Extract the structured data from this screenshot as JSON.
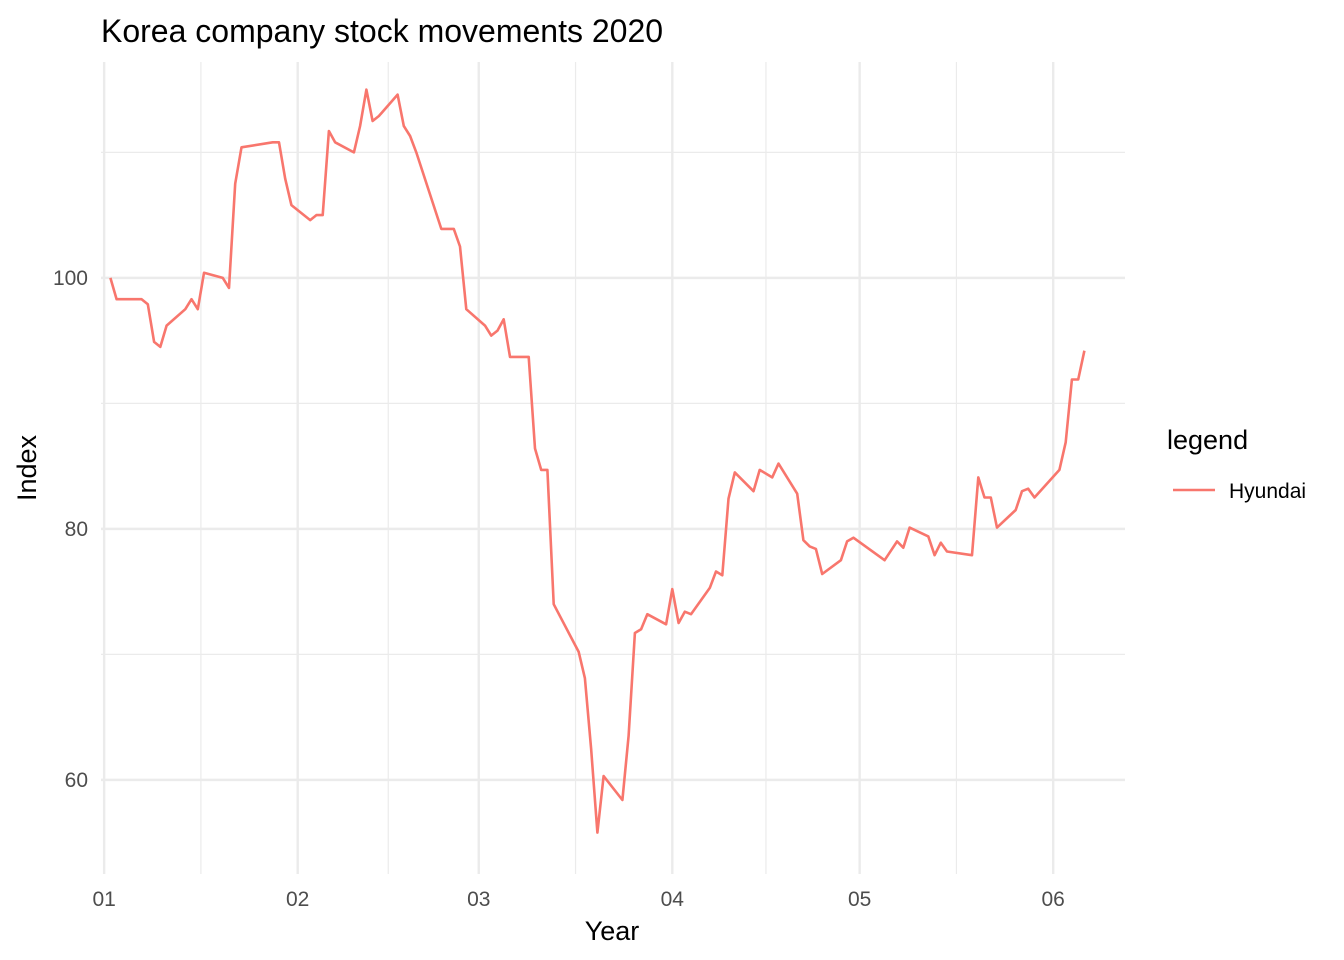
{
  "chart_data": {
    "type": "line",
    "title": "Korea company stock movements 2020",
    "xlabel": "Year",
    "ylabel": "Index",
    "x_tick_labels": [
      "01",
      "02",
      "03",
      "04",
      "05",
      "06"
    ],
    "y_ticks": [
      60,
      80,
      100
    ],
    "ylim": [
      52.5,
      117.2
    ],
    "xlim": [
      0.5,
      164.5
    ],
    "x_tick_days": [
      1,
      32,
      61,
      92,
      122,
      153
    ],
    "grid": true,
    "legend": {
      "title": "legend",
      "position": "right"
    },
    "series": [
      {
        "name": "Hyundai",
        "color": "#F8766D",
        "points": [
          [
            2,
            100.0
          ],
          [
            3,
            98.3
          ],
          [
            6,
            98.3
          ],
          [
            7,
            98.3
          ],
          [
            8,
            97.9
          ],
          [
            9,
            94.9
          ],
          [
            10,
            94.5
          ],
          [
            11,
            96.2
          ],
          [
            14,
            97.5
          ],
          [
            15,
            98.3
          ],
          [
            16,
            97.5
          ],
          [
            17,
            100.4
          ],
          [
            20,
            100.0
          ],
          [
            21,
            99.2
          ],
          [
            22,
            107.5
          ],
          [
            23,
            110.4
          ],
          [
            28,
            110.8
          ],
          [
            29,
            110.8
          ],
          [
            30,
            107.9
          ],
          [
            31,
            105.8
          ],
          [
            34,
            104.6
          ],
          [
            35,
            105.0
          ],
          [
            36,
            105.0
          ],
          [
            37,
            111.7
          ],
          [
            38,
            110.8
          ],
          [
            41,
            110.0
          ],
          [
            42,
            112.1
          ],
          [
            43,
            115.0
          ],
          [
            44,
            112.5
          ],
          [
            45,
            112.9
          ],
          [
            48,
            114.6
          ],
          [
            49,
            112.1
          ],
          [
            50,
            111.3
          ],
          [
            51,
            110.0
          ],
          [
            55,
            103.9
          ],
          [
            57,
            103.9
          ],
          [
            58,
            102.5
          ],
          [
            59,
            97.5
          ],
          [
            62,
            96.2
          ],
          [
            63,
            95.4
          ],
          [
            64,
            95.8
          ],
          [
            65,
            96.7
          ],
          [
            66,
            93.7
          ],
          [
            69,
            93.7
          ],
          [
            70,
            86.4
          ],
          [
            71,
            84.7
          ],
          [
            72,
            84.7
          ],
          [
            73,
            74.0
          ],
          [
            77,
            70.2
          ],
          [
            78,
            68.1
          ],
          [
            79,
            62.5
          ],
          [
            80,
            55.8
          ],
          [
            81,
            60.3
          ],
          [
            84,
            58.4
          ],
          [
            85,
            63.5
          ],
          [
            86,
            71.7
          ],
          [
            87,
            72.0
          ],
          [
            88,
            73.2
          ],
          [
            91,
            72.4
          ],
          [
            92,
            75.2
          ],
          [
            93,
            72.5
          ],
          [
            94,
            73.4
          ],
          [
            95,
            73.2
          ],
          [
            98,
            75.3
          ],
          [
            99,
            76.6
          ],
          [
            100,
            76.3
          ],
          [
            101,
            82.4
          ],
          [
            102,
            84.5
          ],
          [
            105,
            83.0
          ],
          [
            106,
            84.7
          ],
          [
            108,
            84.1
          ],
          [
            109,
            85.2
          ],
          [
            112,
            82.8
          ],
          [
            113,
            79.1
          ],
          [
            114,
            78.6
          ],
          [
            115,
            78.4
          ],
          [
            116,
            76.4
          ],
          [
            119,
            77.5
          ],
          [
            120,
            79.0
          ],
          [
            121,
            79.3
          ],
          [
            126,
            77.5
          ],
          [
            128,
            79.0
          ],
          [
            129,
            78.5
          ],
          [
            130,
            80.1
          ],
          [
            133,
            79.4
          ],
          [
            134,
            77.9
          ],
          [
            135,
            78.9
          ],
          [
            136,
            78.2
          ],
          [
            140,
            77.9
          ],
          [
            141,
            84.1
          ],
          [
            142,
            82.5
          ],
          [
            143,
            82.5
          ],
          [
            144,
            80.1
          ],
          [
            147,
            81.5
          ],
          [
            148,
            83.0
          ],
          [
            149,
            83.2
          ],
          [
            150,
            82.5
          ],
          [
            154,
            84.7
          ],
          [
            155,
            86.9
          ],
          [
            156,
            91.9
          ],
          [
            157,
            91.9
          ],
          [
            158,
            94.2
          ]
        ]
      }
    ]
  }
}
